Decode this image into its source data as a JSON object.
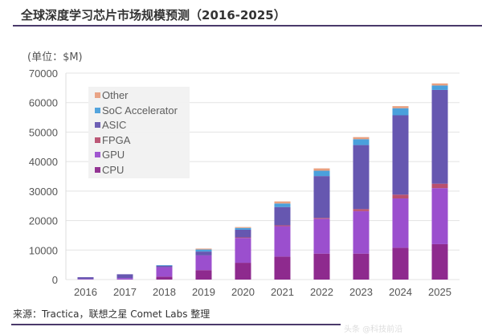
{
  "header": {
    "title": "全球深度学习芯片市场规模预测（2016-2025）",
    "unit": "(单位：$M)"
  },
  "footer": {
    "source": "来源：Tractica，联想之星 Comet Labs 整理",
    "watermark": "头条 @科技前沿"
  },
  "chart_data": {
    "type": "bar",
    "stacked": true,
    "title": "全球深度学习芯片市场规模预测（2016-2025）",
    "xlabel": "",
    "ylabel": "(单位：$M)",
    "ylim": [
      0,
      70000
    ],
    "yticks": [
      0,
      10000,
      20000,
      30000,
      40000,
      50000,
      60000,
      70000
    ],
    "grid": true,
    "legend_position": "top-left",
    "categories": [
      "2016",
      "2017",
      "2018",
      "2019",
      "2020",
      "2021",
      "2022",
      "2023",
      "2024",
      "2025"
    ],
    "series": [
      {
        "name": "CPU",
        "color": "#8e2a8e",
        "values": [
          0,
          0,
          1000,
          3200,
          5700,
          7800,
          8800,
          8800,
          10800,
          12000
        ]
      },
      {
        "name": "GPU",
        "color": "#9b4fce",
        "values": [
          200,
          500,
          3200,
          5000,
          8400,
          10300,
          11800,
          14400,
          16700,
          19000
        ]
      },
      {
        "name": "FPGA",
        "color": "#b9506f",
        "values": [
          0,
          0,
          0,
          0,
          200,
          300,
          300,
          700,
          1300,
          1500
        ]
      },
      {
        "name": "ASIC",
        "color": "#6657b0",
        "values": [
          600,
          1300,
          500,
          1300,
          2600,
          6200,
          14200,
          21700,
          26900,
          31800
        ]
      },
      {
        "name": "SoC Accelerator",
        "color": "#4aa0dc",
        "values": [
          0,
          0,
          200,
          700,
          600,
          1200,
          1800,
          2000,
          2400,
          1500
        ]
      },
      {
        "name": "Other",
        "color": "#e8a080",
        "values": [
          0,
          0,
          0,
          300,
          300,
          700,
          800,
          700,
          700,
          700
        ]
      }
    ],
    "legend_order": [
      "Other",
      "SoC Accelerator",
      "ASIC",
      "FPGA",
      "GPU",
      "CPU"
    ]
  }
}
